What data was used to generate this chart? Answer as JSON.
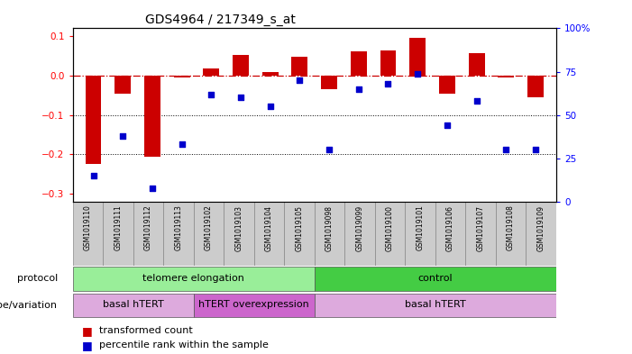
{
  "title": "GDS4964 / 217349_s_at",
  "samples": [
    "GSM1019110",
    "GSM1019111",
    "GSM1019112",
    "GSM1019113",
    "GSM1019102",
    "GSM1019103",
    "GSM1019104",
    "GSM1019105",
    "GSM1019098",
    "GSM1019099",
    "GSM1019100",
    "GSM1019101",
    "GSM1019106",
    "GSM1019107",
    "GSM1019108",
    "GSM1019109"
  ],
  "bar_values": [
    -0.225,
    -0.045,
    -0.205,
    -0.005,
    0.018,
    0.052,
    0.01,
    0.048,
    -0.035,
    0.062,
    0.065,
    0.097,
    -0.045,
    0.058,
    -0.005,
    -0.055
  ],
  "dot_values": [
    15,
    38,
    8,
    33,
    62,
    60,
    55,
    70,
    30,
    65,
    68,
    74,
    44,
    58,
    30,
    30
  ],
  "ylim_left": [
    -0.32,
    0.12
  ],
  "ylim_right": [
    0,
    100
  ],
  "yticks_left": [
    -0.3,
    -0.2,
    -0.1,
    0.0,
    0.1
  ],
  "yticks_right": [
    0,
    25,
    50,
    75,
    100
  ],
  "bar_color": "#cc0000",
  "dot_color": "#0000cc",
  "hline_color": "#cc0000",
  "dotted_lines": [
    -0.1,
    -0.2
  ],
  "protocol_groups": [
    {
      "label": "telomere elongation",
      "start": 0,
      "end": 8,
      "color": "#99ee99"
    },
    {
      "label": "control",
      "start": 8,
      "end": 16,
      "color": "#44cc44"
    }
  ],
  "genotype_groups": [
    {
      "label": "basal hTERT",
      "start": 0,
      "end": 4,
      "color": "#ddaadd"
    },
    {
      "label": "hTERT overexpression",
      "start": 4,
      "end": 8,
      "color": "#cc66cc"
    },
    {
      "label": "basal hTERT",
      "start": 8,
      "end": 16,
      "color": "#ddaadd"
    }
  ],
  "protocol_label": "protocol",
  "genotype_label": "genotype/variation",
  "background_color": "#ffffff",
  "title_fontsize": 10
}
